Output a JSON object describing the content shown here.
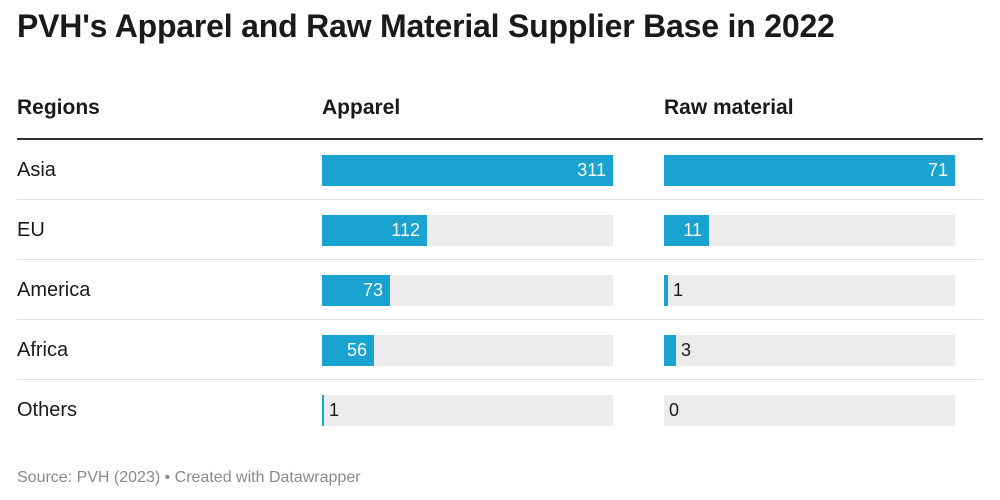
{
  "title": "PVH's Apparel and Raw Material Supplier Base in 2022",
  "source": "Source: PVH (2023) • Created with Datawrapper",
  "colors": {
    "bar": "#1aa3d1",
    "track": "#ececec",
    "text": "#1a1a1a",
    "source_text": "#8a8a8a"
  },
  "chart_data": {
    "type": "bar",
    "title": "PVH's Apparel and Raw Material Supplier Base in 2022",
    "category_header": "Regions",
    "categories": [
      "Asia",
      "EU",
      "America",
      "Africa",
      "Others"
    ],
    "series": [
      {
        "name": "Apparel",
        "values": [
          311,
          112,
          73,
          56,
          1
        ]
      },
      {
        "name": "Raw material",
        "values": [
          71,
          11,
          1,
          3,
          0
        ]
      }
    ]
  }
}
